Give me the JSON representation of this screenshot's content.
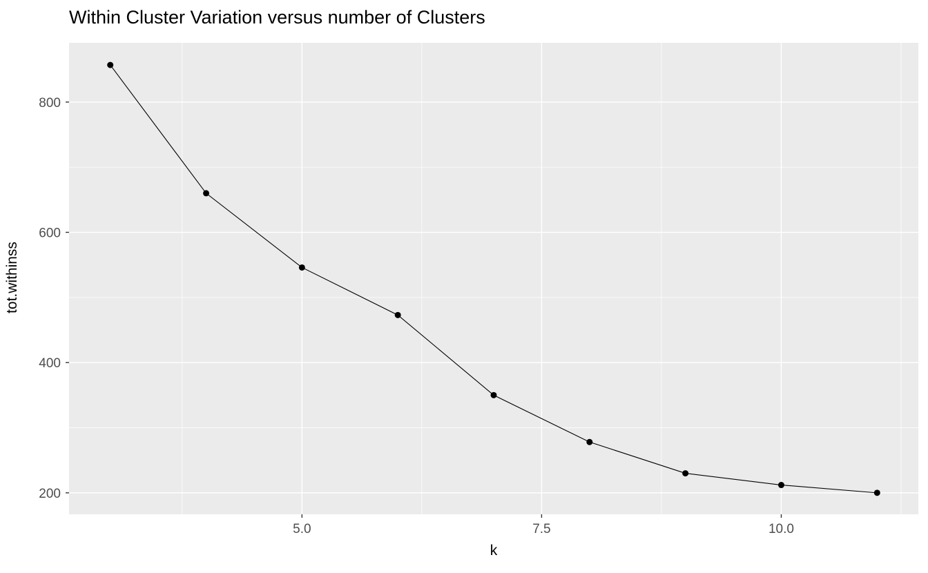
{
  "title": "Within Cluster Variation versus number of Clusters",
  "chart_data": {
    "type": "line",
    "title": "Within Cluster Variation versus number of Clusters",
    "xlabel": "k",
    "ylabel": "tot.withinss",
    "x": [
      3,
      4,
      5,
      6,
      7,
      8,
      9,
      10,
      11
    ],
    "y": [
      857,
      660,
      546,
      473,
      350,
      278,
      230,
      212,
      200
    ],
    "series": [
      {
        "name": "tot.withinss",
        "values": [
          857,
          660,
          546,
          473,
          350,
          278,
          230,
          212,
          200
        ]
      }
    ],
    "xlim": [
      2.57,
      11.43
    ],
    "ylim": [
      167,
      891
    ],
    "x_major_ticks": [
      5.0,
      7.5,
      10.0
    ],
    "x_tick_labels": [
      "5.0",
      "7.5",
      "10.0"
    ],
    "x_minor_ticks": [
      3.75,
      6.25,
      8.75,
      11.25
    ],
    "y_major_ticks": [
      200,
      400,
      600,
      800
    ],
    "y_tick_labels": [
      "200",
      "400",
      "600",
      "800"
    ],
    "y_minor_ticks": [
      300,
      500,
      700
    ],
    "grid": true,
    "legend": false,
    "style": "ggplot2",
    "colors": {
      "plot_background": "#FFFFFF",
      "panel_background": "#EBEBEB",
      "grid_major": "#FFFFFF",
      "grid_minor": "#FFFFFF",
      "line": "#000000",
      "point": "#000000",
      "tick_mark": "#333333",
      "tick_label": "#4D4D4D",
      "title": "#000000"
    }
  }
}
